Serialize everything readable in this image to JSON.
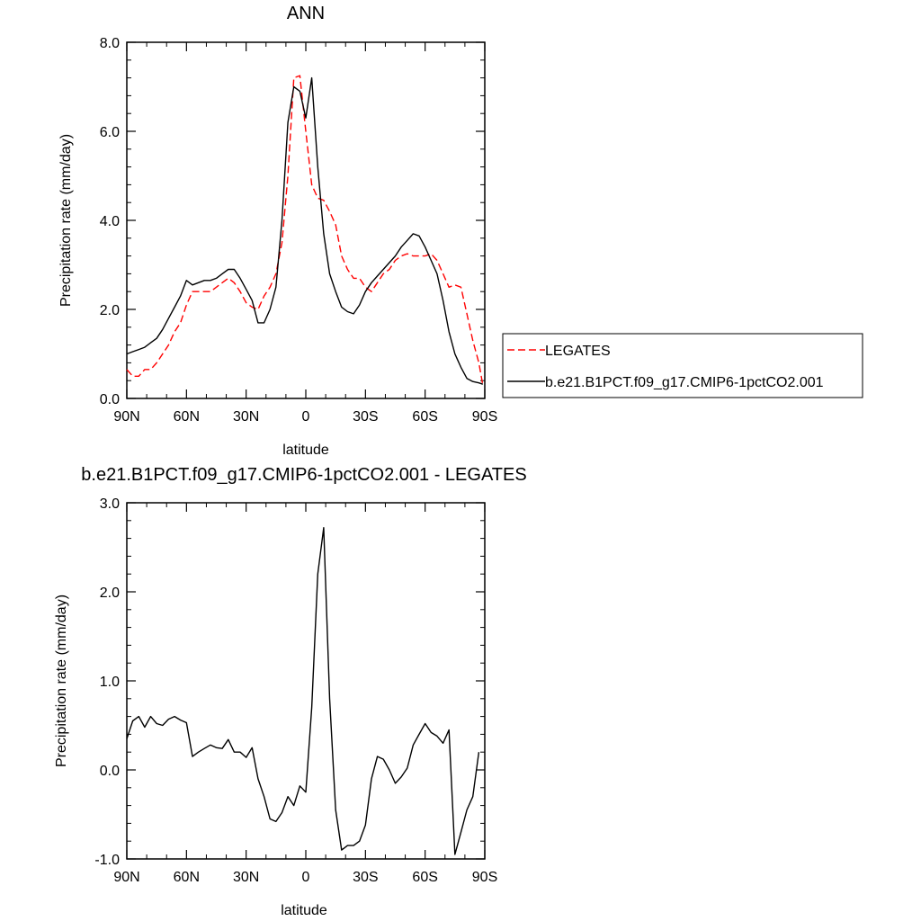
{
  "chart_data": [
    {
      "type": "line",
      "title": "ANN",
      "xlabel": "latitude",
      "ylabel": "Precipitation rate (mm/day)",
      "xlim": [
        90,
        -90
      ],
      "ylim": [
        0,
        8
      ],
      "x_ticks": [
        {
          "value": 90,
          "label": "90N"
        },
        {
          "value": 60,
          "label": "60N"
        },
        {
          "value": 30,
          "label": "30N"
        },
        {
          "value": 0,
          "label": "0"
        },
        {
          "value": -30,
          "label": "30S"
        },
        {
          "value": -60,
          "label": "60S"
        },
        {
          "value": -90,
          "label": "90S"
        }
      ],
      "y_ticks": [
        {
          "value": 0,
          "label": "0.0"
        },
        {
          "value": 2,
          "label": "2.0"
        },
        {
          "value": 4,
          "label": "4.0"
        },
        {
          "value": 6,
          "label": "6.0"
        },
        {
          "value": 8,
          "label": "8.0"
        }
      ],
      "legend_position": "right",
      "series": [
        {
          "name": "LEGATES",
          "color": "#ff0000",
          "dash": "dashed",
          "x": [
            90,
            87,
            84,
            81,
            78,
            75,
            72,
            69,
            66,
            63,
            60,
            57,
            54,
            51,
            48,
            45,
            42,
            39,
            36,
            33,
            30,
            27,
            24,
            21,
            18,
            15,
            12,
            9,
            6,
            3,
            0,
            -3,
            -6,
            -9,
            -12,
            -15,
            -18,
            -21,
            -24,
            -27,
            -30,
            -33,
            -36,
            -39,
            -42,
            -45,
            -48,
            -51,
            -54,
            -57,
            -60,
            -63,
            -66,
            -69,
            -72,
            -75,
            -78,
            -81,
            -84,
            -87,
            -89
          ],
          "y": [
            0.65,
            0.5,
            0.5,
            0.65,
            0.65,
            0.8,
            1.0,
            1.2,
            1.5,
            1.7,
            2.1,
            2.4,
            2.4,
            2.4,
            2.4,
            2.5,
            2.6,
            2.7,
            2.6,
            2.4,
            2.15,
            2.05,
            2.0,
            2.3,
            2.5,
            2.8,
            3.5,
            5.0,
            7.2,
            7.25,
            6.0,
            4.8,
            4.5,
            4.45,
            4.2,
            3.9,
            3.2,
            2.9,
            2.7,
            2.7,
            2.5,
            2.4,
            2.6,
            2.8,
            2.9,
            3.1,
            3.2,
            3.25,
            3.2,
            3.2,
            3.2,
            3.25,
            3.1,
            2.8,
            2.5,
            2.55,
            2.5,
            1.9,
            1.3,
            0.8,
            0.3
          ]
        },
        {
          "name": "b.e21.B1PCT.f09_g17.CMIP6-1pctCO2.001",
          "color": "#000000",
          "dash": "solid",
          "x": [
            90,
            87,
            84,
            81,
            78,
            75,
            72,
            69,
            66,
            63,
            60,
            57,
            54,
            51,
            48,
            45,
            42,
            39,
            36,
            33,
            30,
            27,
            24,
            21,
            18,
            15,
            12,
            9,
            6,
            3,
            0,
            -3,
            -6,
            -9,
            -12,
            -15,
            -18,
            -21,
            -24,
            -27,
            -30,
            -33,
            -36,
            -39,
            -42,
            -45,
            -48,
            -51,
            -54,
            -57,
            -60,
            -63,
            -66,
            -69,
            -72,
            -75,
            -78,
            -81,
            -84,
            -87,
            -89
          ],
          "y": [
            1.0,
            1.05,
            1.1,
            1.15,
            1.25,
            1.35,
            1.55,
            1.8,
            2.05,
            2.3,
            2.65,
            2.55,
            2.6,
            2.65,
            2.65,
            2.7,
            2.8,
            2.9,
            2.9,
            2.7,
            2.45,
            2.2,
            1.7,
            1.7,
            2.0,
            2.5,
            4.0,
            6.2,
            7.0,
            6.9,
            6.3,
            7.2,
            5.2,
            3.7,
            2.8,
            2.4,
            2.05,
            1.95,
            1.9,
            2.1,
            2.4,
            2.6,
            2.75,
            2.9,
            3.05,
            3.2,
            3.4,
            3.55,
            3.7,
            3.65,
            3.4,
            3.1,
            2.8,
            2.2,
            1.5,
            1.0,
            0.7,
            0.45,
            0.38,
            0.35,
            0.32
          ]
        }
      ]
    },
    {
      "type": "line",
      "title": "b.e21.B1PCT.f09_g17.CMIP6-1pctCO2.001 - LEGATES",
      "xlabel": "latitude",
      "ylabel": "Precipitation rate (mm/day)",
      "xlim": [
        90,
        -90
      ],
      "ylim": [
        -1,
        3
      ],
      "x_ticks": [
        {
          "value": 90,
          "label": "90N"
        },
        {
          "value": 60,
          "label": "60N"
        },
        {
          "value": 30,
          "label": "30N"
        },
        {
          "value": 0,
          "label": "0"
        },
        {
          "value": -30,
          "label": "30S"
        },
        {
          "value": -60,
          "label": "60S"
        },
        {
          "value": -90,
          "label": "90S"
        }
      ],
      "y_ticks": [
        {
          "value": -1,
          "label": "-1.0"
        },
        {
          "value": 0,
          "label": "0.0"
        },
        {
          "value": 1,
          "label": "1.0"
        },
        {
          "value": 2,
          "label": "2.0"
        },
        {
          "value": 3,
          "label": "3.0"
        }
      ],
      "series": [
        {
          "color": "#000000",
          "dash": "solid",
          "x": [
            90,
            87,
            84,
            81,
            78,
            75,
            72,
            69,
            66,
            63,
            60,
            57,
            54,
            51,
            48,
            45,
            42,
            39,
            36,
            33,
            30,
            27,
            24,
            21,
            18,
            15,
            12,
            9,
            6,
            3,
            0,
            -3,
            -6,
            -9,
            -12,
            -15,
            -18,
            -21,
            -24,
            -27,
            -30,
            -33,
            -36,
            -39,
            -42,
            -45,
            -48,
            -51,
            -54,
            -57,
            -60,
            -63,
            -66,
            -69,
            -72,
            -75,
            -78,
            -81,
            -84,
            -87
          ],
          "y": [
            0.35,
            0.55,
            0.6,
            0.48,
            0.6,
            0.52,
            0.5,
            0.57,
            0.6,
            0.56,
            0.53,
            0.15,
            0.2,
            0.24,
            0.28,
            0.25,
            0.24,
            0.34,
            0.2,
            0.2,
            0.14,
            0.25,
            -0.1,
            -0.3,
            -0.55,
            -0.58,
            -0.48,
            -0.3,
            -0.4,
            -0.18,
            -0.25,
            0.7,
            2.2,
            2.72,
            0.8,
            -0.45,
            -0.9,
            -0.85,
            -0.85,
            -0.8,
            -0.62,
            -0.1,
            0.15,
            0.12,
            0.0,
            -0.15,
            -0.08,
            0.02,
            0.28,
            0.4,
            0.52,
            0.42,
            0.38,
            0.3,
            0.45,
            -0.95,
            -0.7,
            -0.45,
            -0.3,
            0.2
          ]
        }
      ]
    }
  ],
  "legend": {
    "entries": [
      "LEGATES",
      "b.e21.B1PCT.f09_g17.CMIP6-1pctCO2.001"
    ]
  }
}
